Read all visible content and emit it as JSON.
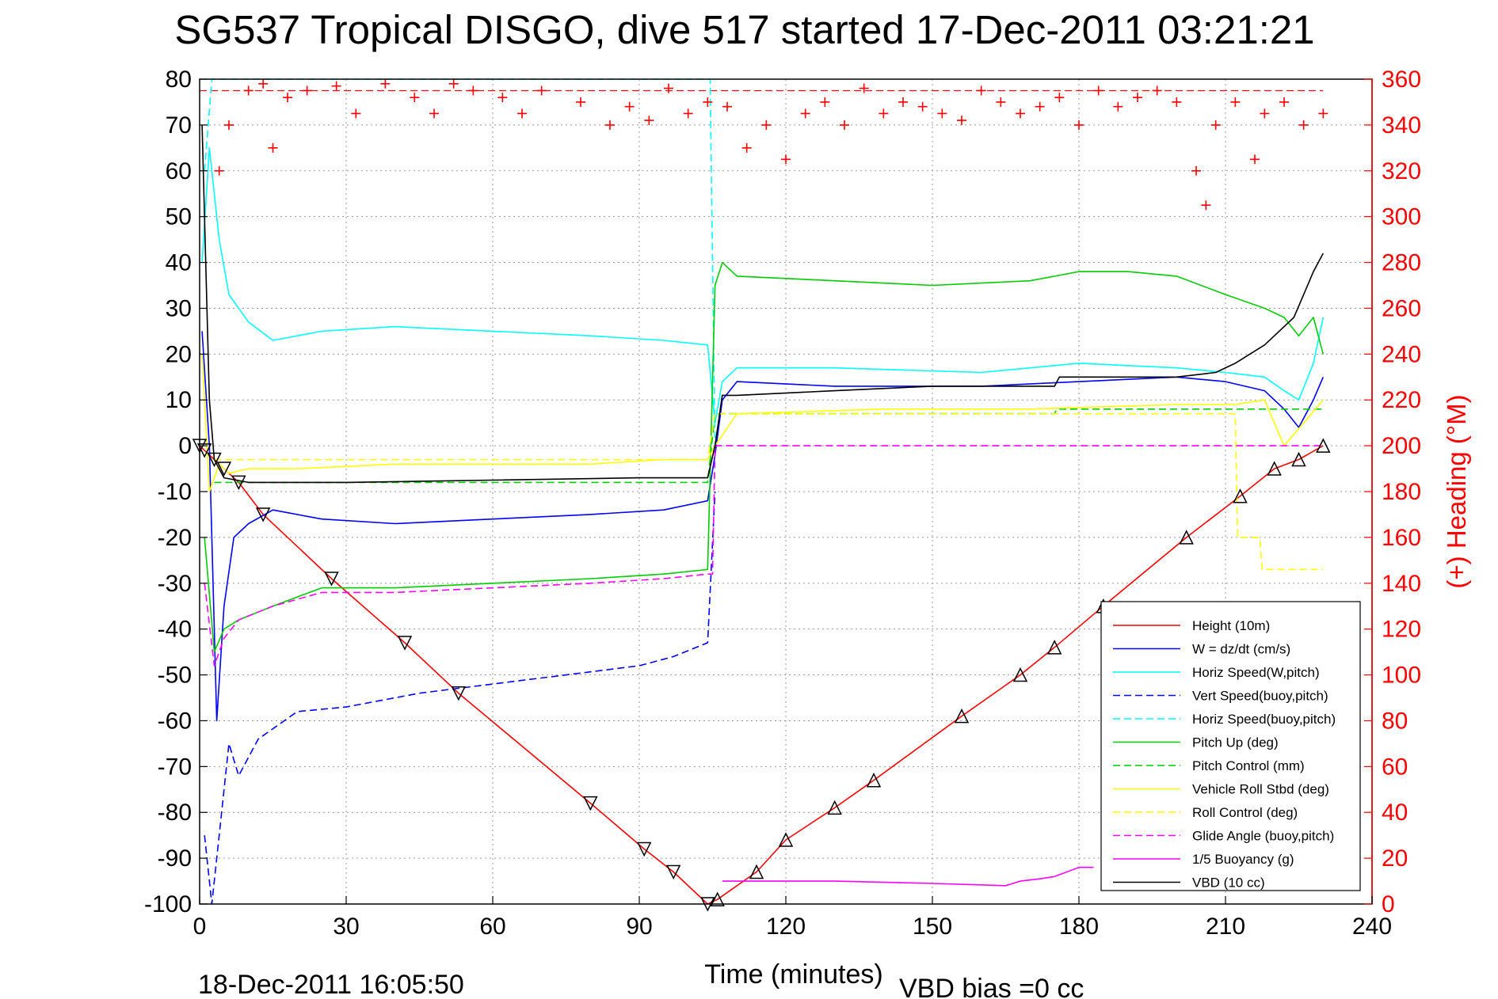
{
  "title": "SG537 Tropical DISGO, dive 517 started 17-Dec-2011 03:21:21",
  "footer": {
    "timestamp": "18-Dec-2011 16:05:50",
    "vbd_bias": "VBD bias =0 cc"
  },
  "chart_data": {
    "type": "line",
    "xlabel": "Time (minutes)",
    "ylabel": "",
    "y2label": "(+) Heading (°M)",
    "xlim": [
      0,
      240
    ],
    "ylim": [
      -100,
      80
    ],
    "y2lim": [
      0,
      360
    ],
    "xticks": [
      0,
      30,
      60,
      90,
      120,
      150,
      180,
      210,
      240
    ],
    "yticks": [
      80,
      70,
      60,
      50,
      40,
      30,
      20,
      10,
      0,
      -10,
      -20,
      -30,
      -40,
      -50,
      -60,
      -70,
      -80,
      -90,
      -100
    ],
    "y2ticks": [
      360,
      340,
      320,
      300,
      280,
      260,
      240,
      220,
      200,
      180,
      160,
      140,
      120,
      100,
      80,
      60,
      40,
      20,
      0
    ],
    "grid": true,
    "legend_position": "bottom-right",
    "colors": {
      "height": "#ff0000",
      "w": "#0000ff",
      "horiz_w": "#00ffff",
      "vert_buoy": "#0000ff",
      "horiz_buoy": "#00ffff",
      "pitch": "#00cc00",
      "pitch_control": "#00cc00",
      "roll": "#ffff00",
      "roll_control": "#ffff00",
      "glide": "#ff00ff",
      "buoyancy": "#ff00ff",
      "vbd": "#000000",
      "heading": "#ff0000"
    },
    "series": [
      {
        "name": "Height (10m)",
        "key": "height",
        "style": "solid",
        "x": [
          0,
          1,
          3,
          5,
          8,
          13,
          27,
          42,
          53,
          80,
          91,
          97,
          104,
          106,
          114,
          120,
          130,
          138,
          156,
          168,
          175,
          185,
          202,
          213,
          220,
          225,
          230
        ],
        "y": [
          0,
          -1,
          -3,
          -5,
          -8,
          -15,
          -29,
          -43,
          -54,
          -78,
          -88,
          -93,
          -100,
          -99,
          -93,
          -86,
          -79,
          -73,
          -59,
          -50,
          -44,
          -35,
          -20,
          -11,
          -5,
          -3,
          0
        ]
      },
      {
        "name": "W = dz/dt (cm/s)",
        "key": "w",
        "style": "solid",
        "x": [
          0.5,
          2,
          3.5,
          5,
          7,
          10,
          15,
          25,
          40,
          60,
          80,
          95,
          104,
          105.5,
          107,
          110,
          130,
          160,
          180,
          200,
          210,
          218,
          222,
          225,
          228,
          230
        ],
        "y": [
          25,
          0,
          -60,
          -35,
          -20,
          -17,
          -14,
          -16,
          -17,
          -16,
          -15,
          -14,
          -12,
          -2,
          10,
          14,
          13,
          13,
          14,
          15,
          14,
          12,
          8,
          4,
          10,
          15
        ]
      },
      {
        "name": "Horiz Speed(W,pitch)",
        "key": "horiz_w",
        "style": "solid",
        "x": [
          0.5,
          2,
          4,
          6,
          10,
          15,
          25,
          40,
          60,
          80,
          95,
          104,
          105.5,
          107,
          110,
          130,
          160,
          180,
          200,
          210,
          218,
          222,
          225,
          228,
          230
        ],
        "y": [
          40,
          65,
          45,
          33,
          27,
          23,
          25,
          26,
          25,
          24,
          23,
          22,
          5,
          14,
          17,
          17,
          16,
          18,
          17,
          16,
          15,
          12,
          10,
          18,
          28
        ]
      },
      {
        "name": "Vert Speed(buoy,pitch)",
        "key": "vert_buoy",
        "style": "dashed",
        "x": [
          1,
          2.5,
          4,
          6,
          8,
          12,
          20,
          30,
          45,
          60,
          75,
          90,
          97,
          104,
          105.5
        ],
        "y": [
          -85,
          -100,
          -85,
          -65,
          -72,
          -64,
          -58,
          -57,
          -54,
          -52,
          -50,
          -48,
          -46,
          -43,
          -10
        ]
      },
      {
        "name": "Horiz Speed(buoy,pitch)",
        "key": "horiz_buoy",
        "style": "dashed",
        "x": [
          1,
          2.5,
          3,
          104,
          104.5,
          105.5
        ],
        "y": [
          60,
          80,
          80,
          80,
          80,
          0
        ]
      },
      {
        "name": "Pitch Up (deg)",
        "key": "pitch",
        "style": "solid",
        "x": [
          1,
          3,
          5,
          8,
          15,
          25,
          40,
          60,
          80,
          95,
          104,
          105.5,
          107,
          110,
          130,
          150,
          170,
          180,
          190,
          200,
          210,
          218,
          222,
          225,
          228,
          230
        ],
        "y": [
          -20,
          -45,
          -40,
          -38,
          -35,
          -31,
          -31,
          -30,
          -29,
          -28,
          -27,
          35,
          40,
          37,
          36,
          35,
          36,
          38,
          38,
          37,
          33,
          30,
          28,
          24,
          28,
          20
        ]
      },
      {
        "name": "Pitch Control (mm)",
        "key": "pitch_control",
        "style": "dashed",
        "x": [
          3,
          104,
          105.5,
          175,
          175.5,
          230
        ],
        "y": [
          -8,
          -8,
          7,
          7,
          8,
          8
        ]
      },
      {
        "name": "Vehicle Roll Stbd (deg)",
        "key": "roll",
        "style": "solid",
        "x": [
          0.5,
          2,
          4,
          6,
          10,
          20,
          40,
          60,
          80,
          95,
          104,
          105.5,
          110,
          140,
          170,
          200,
          212,
          218,
          222,
          226,
          230
        ],
        "y": [
          20,
          -10,
          -4,
          -6,
          -5,
          -5,
          -4,
          -4,
          -4,
          -3,
          -3,
          0,
          7,
          8,
          8,
          9,
          9,
          10,
          0,
          5,
          10
        ]
      },
      {
        "name": "Roll Control (deg)",
        "key": "roll_control",
        "style": "dashed",
        "x": [
          3,
          104,
          105.5,
          212,
          212.5,
          217,
          217.5,
          230
        ],
        "y": [
          -3,
          -3,
          7,
          7,
          -20,
          -20,
          -27,
          -27
        ]
      },
      {
        "name": "Glide Angle (buoy,pitch)",
        "key": "glide",
        "style": "dashed",
        "x": [
          1,
          3,
          5,
          8,
          15,
          25,
          40,
          60,
          80,
          95,
          104,
          105,
          105.5,
          230
        ],
        "y": [
          -30,
          -48,
          -42,
          -38,
          -35,
          -32,
          -32,
          -31,
          -30,
          -29,
          -28,
          -28,
          0,
          0
        ]
      },
      {
        "name": "1/5 Buoyancy (g)",
        "key": "buoyancy",
        "style": "solid",
        "x": [
          107,
          110,
          130,
          150,
          165,
          168,
          172,
          175,
          180,
          183
        ],
        "y": [
          -95,
          -95,
          -95,
          -95.5,
          -96,
          -95,
          -94.5,
          -94,
          -92,
          -92
        ]
      },
      {
        "name": "VBD (10 cc)",
        "key": "vbd",
        "style": "solid",
        "x": [
          0.5,
          2,
          3,
          5,
          10,
          30,
          60,
          90,
          104,
          105.5,
          107,
          110,
          130,
          150,
          175,
          176,
          200,
          208,
          212,
          215,
          218,
          221,
          224,
          226,
          228,
          230
        ],
        "y": [
          70,
          10,
          -3,
          -7,
          -8,
          -8,
          -7.5,
          -7,
          -7,
          0,
          11,
          11,
          12,
          13,
          13,
          15,
          15,
          16,
          18,
          20,
          22,
          25,
          28,
          33,
          38,
          42
        ]
      }
    ],
    "heading_markers": {
      "name": "(+) Heading (°M)",
      "marker": "+",
      "x": [
        4,
        6,
        10,
        13,
        15,
        18,
        22,
        28,
        32,
        38,
        44,
        48,
        52,
        56,
        62,
        66,
        70,
        78,
        84,
        88,
        92,
        96,
        100,
        104,
        108,
        112,
        116,
        120,
        124,
        128,
        132,
        136,
        140,
        144,
        148,
        152,
        156,
        160,
        164,
        168,
        172,
        176,
        180,
        184,
        188,
        192,
        196,
        200,
        204,
        206,
        208,
        212,
        216,
        218,
        222,
        226,
        230
      ],
      "y": [
        320,
        340,
        355,
        358,
        330,
        352,
        355,
        357,
        345,
        358,
        352,
        345,
        358,
        355,
        352,
        345,
        355,
        350,
        340,
        348,
        342,
        356,
        345,
        350,
        348,
        330,
        340,
        325,
        345,
        350,
        340,
        356,
        345,
        350,
        348,
        345,
        342,
        355,
        350,
        345,
        348,
        352,
        340,
        355,
        348,
        352,
        355,
        350,
        320,
        305,
        340,
        350,
        325,
        345,
        350,
        340,
        345
      ]
    },
    "heading_reference": 355
  }
}
